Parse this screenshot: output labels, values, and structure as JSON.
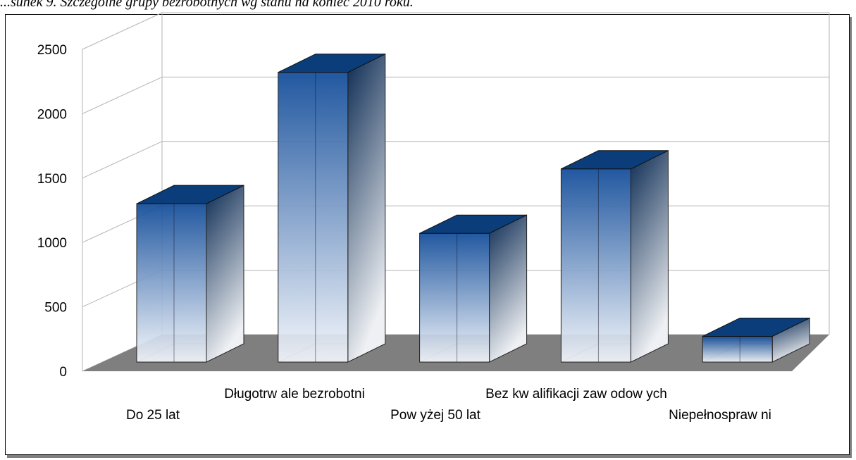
{
  "caption": "...sunek 9. Szczególne grupy bezrobotnych wg stanu na koniec 2010 roku.",
  "chart_data": {
    "type": "bar",
    "style": "3d-column",
    "title": "",
    "categories": [
      "Do 25 lat",
      "Długotrw ale bezrobotni",
      "Pow yżej 50 lat",
      "Bez kw alifikacji zaw odow ych",
      "Niepełnospraw ni"
    ],
    "values": [
      1230,
      2250,
      1000,
      1500,
      200
    ],
    "ylim": [
      0,
      2500
    ],
    "yticks": [
      "0",
      "500",
      "1000",
      "1500",
      "2000",
      "2500"
    ],
    "grid": true,
    "legend": "none",
    "colors": {
      "bar_top": "#0a3d7a",
      "bar_front_dark": "#1450a0",
      "bar_front_light": "#eef3fa",
      "bar_side_dark": "#0d2f58",
      "floor": "#7f7f7f",
      "grid": "#b3b3b3"
    }
  }
}
